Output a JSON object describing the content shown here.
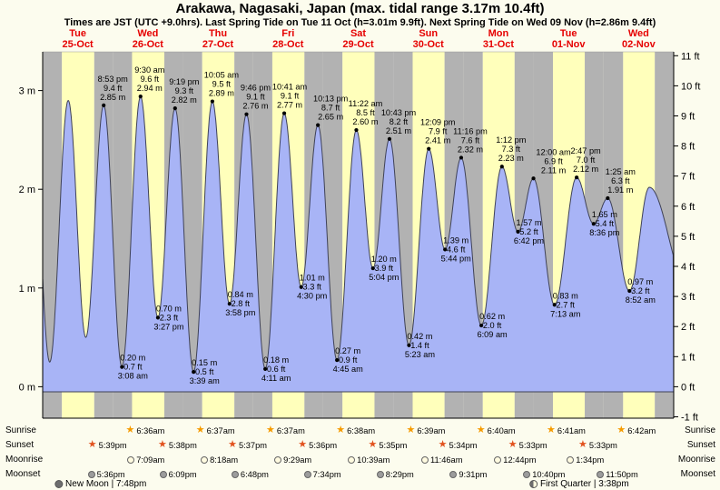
{
  "header": {
    "title": "Arakawa, Nagasaki, Japan (max. tidal range 3.17m 10.4ft)",
    "subtitle": "Times are JST (UTC +9.0hrs). Last Spring Tide on Tue 11 Oct (h=3.01m 9.9ft). Next Spring Tide on Wed 09 Nov (h=2.86m 9.4ft)"
  },
  "days": [
    {
      "weekday": "Tue",
      "date": "25-Oct"
    },
    {
      "weekday": "Wed",
      "date": "26-Oct"
    },
    {
      "weekday": "Thu",
      "date": "27-Oct"
    },
    {
      "weekday": "Fri",
      "date": "28-Oct"
    },
    {
      "weekday": "Sat",
      "date": "29-Oct"
    },
    {
      "weekday": "Sun",
      "date": "30-Oct"
    },
    {
      "weekday": "Mon",
      "date": "31-Oct"
    },
    {
      "weekday": "Tue",
      "date": "01-Nov"
    },
    {
      "weekday": "Wed",
      "date": "02-Nov"
    }
  ],
  "chart_data": {
    "type": "area",
    "title": "Arakawa, Nagasaki, Japan tide curve",
    "x_axis": {
      "days": 9,
      "start": "Tue 25-Oct",
      "end": "Wed 02-Nov"
    },
    "y_axis_left": {
      "unit": "m",
      "ticks": [
        3,
        2,
        1,
        0
      ]
    },
    "y_axis_right": {
      "unit": "ft",
      "ticks": [
        11,
        10,
        9,
        8,
        7,
        6,
        5,
        4,
        3,
        2,
        1,
        0,
        -1
      ]
    },
    "ylim_m": [
      -0.35,
      3.4
    ],
    "colors": {
      "night_band": "#b2b2b2",
      "day_band": "#ffffbb",
      "tide_fill": "#a8b4f6",
      "tide_stroke": "#3f4257",
      "header_red": "#e60000",
      "sunrise_star": "#f59b00",
      "sunset_star": "#e2521e",
      "moonrise_fill": "#fffbe0",
      "moonset_fill": "#9c9c9c"
    },
    "day_night": [
      {
        "sunrise": "6:36 am",
        "sunset": "5:39 pm"
      },
      {
        "sunrise": "6:36 am",
        "sunset": "5:38 pm"
      },
      {
        "sunrise": "6:37 am",
        "sunset": "5:37 pm"
      },
      {
        "sunrise": "6:37 am",
        "sunset": "5:36 pm"
      },
      {
        "sunrise": "6:38 am",
        "sunset": "5:35 pm"
      },
      {
        "sunrise": "6:39 am",
        "sunset": "5:34 pm"
      },
      {
        "sunrise": "6:40 am",
        "sunset": "5:33 pm"
      },
      {
        "sunrise": "6:41 am",
        "sunset": "5:33 pm"
      },
      {
        "sunrise": "6:42 am",
        "sunset": "5:32 pm"
      }
    ],
    "tide_events": [
      {
        "day": -1,
        "type": "high",
        "time": "8:15 pm",
        "height_m": 2.8,
        "labeled": false
      },
      {
        "day": 0,
        "type": "low",
        "time": "2:25 am",
        "height_m": 0.25,
        "labeled": false
      },
      {
        "day": 0,
        "type": "high",
        "time": "8:45 am",
        "height_m": 2.9,
        "labeled": false
      },
      {
        "day": 0,
        "type": "low",
        "time": "2:45 pm",
        "height_m": 0.5,
        "labeled": false
      },
      {
        "day": 0,
        "type": "high",
        "time": "8:53 pm",
        "height_m": 2.85,
        "height_ft": 9.4,
        "labeled": true
      },
      {
        "day": 1,
        "type": "low",
        "time": "3:08 am",
        "height_m": 0.2,
        "height_ft": 0.7,
        "labeled": true
      },
      {
        "day": 1,
        "type": "high",
        "time": "9:30 am",
        "height_m": 2.94,
        "height_ft": 9.6,
        "labeled": true
      },
      {
        "day": 1,
        "type": "low",
        "time": "3:27 pm",
        "height_m": 0.7,
        "height_ft": 2.3,
        "labeled": true
      },
      {
        "day": 1,
        "type": "high",
        "time": "9:19 pm",
        "height_m": 2.82,
        "height_ft": 9.3,
        "labeled": true
      },
      {
        "day": 2,
        "type": "low",
        "time": "3:39 am",
        "height_m": 0.15,
        "height_ft": 0.5,
        "labeled": true
      },
      {
        "day": 2,
        "type": "high",
        "time": "10:05 am",
        "height_m": 2.89,
        "height_ft": 9.5,
        "labeled": true
      },
      {
        "day": 2,
        "type": "low",
        "time": "3:58 pm",
        "height_m": 0.84,
        "height_ft": 2.8,
        "labeled": true
      },
      {
        "day": 2,
        "type": "high",
        "time": "9:46 pm",
        "height_m": 2.76,
        "height_ft": 9.1,
        "labeled": true
      },
      {
        "day": 3,
        "type": "low",
        "time": "4:11 am",
        "height_m": 0.18,
        "height_ft": 0.6,
        "labeled": true
      },
      {
        "day": 3,
        "type": "high",
        "time": "10:41 am",
        "height_m": 2.77,
        "height_ft": 9.1,
        "labeled": true,
        "label_dx": -4
      },
      {
        "day": 3,
        "type": "low",
        "time": "4:30 pm",
        "height_m": 1.01,
        "height_ft": 3.3,
        "labeled": true
      },
      {
        "day": 3,
        "type": "high",
        "time": "10:13 pm",
        "height_m": 2.65,
        "height_ft": 8.7,
        "labeled": true,
        "label_dx": 4
      },
      {
        "day": 4,
        "type": "low",
        "time": "4:45 am",
        "height_m": 0.27,
        "height_ft": 0.9,
        "labeled": true
      },
      {
        "day": 4,
        "type": "high",
        "time": "11:22 am",
        "height_m": 2.6,
        "height_ft": 8.5,
        "labeled": true
      },
      {
        "day": 4,
        "type": "low",
        "time": "5:04 pm",
        "height_m": 1.2,
        "height_ft": 3.9,
        "labeled": true
      },
      {
        "day": 4,
        "type": "high",
        "time": "10:43 pm",
        "height_m": 2.51,
        "height_ft": 8.2,
        "labeled": true
      },
      {
        "day": 5,
        "type": "low",
        "time": "5:23 am",
        "height_m": 0.42,
        "height_ft": 1.4,
        "labeled": true
      },
      {
        "day": 5,
        "type": "high",
        "time": "12:09 pm",
        "height_m": 2.41,
        "height_ft": 7.9,
        "labeled": true
      },
      {
        "day": 5,
        "type": "low",
        "time": "5:44 pm",
        "height_m": 1.39,
        "height_ft": 4.6,
        "labeled": true
      },
      {
        "day": 5,
        "type": "high",
        "time": "11:16 pm",
        "height_m": 2.32,
        "height_ft": 7.6,
        "labeled": true
      },
      {
        "day": 6,
        "type": "low",
        "time": "6:09 am",
        "height_m": 0.62,
        "height_ft": 2.0,
        "labeled": true
      },
      {
        "day": 6,
        "type": "high",
        "time": "1:12 pm",
        "height_m": 2.23,
        "height_ft": 7.3,
        "labeled": true
      },
      {
        "day": 6,
        "type": "low",
        "time": "6:42 pm",
        "height_m": 1.57,
        "height_ft": 5.2,
        "labeled": true
      },
      {
        "day": 7,
        "type": "high",
        "time": "12:00 am",
        "height_m": 2.11,
        "height_ft": 6.9,
        "labeled": true,
        "label_dx": 12
      },
      {
        "day": 7,
        "type": "low",
        "time": "7:13 am",
        "height_m": 0.83,
        "height_ft": 2.7,
        "labeled": true
      },
      {
        "day": 7,
        "type": "high",
        "time": "2:47 pm",
        "height_m": 2.12,
        "height_ft": 7.0,
        "labeled": true
      },
      {
        "day": 7,
        "type": "low",
        "time": "8:36 pm",
        "height_m": 1.65,
        "height_ft": 5.4,
        "labeled": true
      },
      {
        "day": 8,
        "type": "high",
        "time": "1:25 am",
        "height_m": 1.91,
        "height_ft": 6.3,
        "labeled": true,
        "label_dx": 4
      },
      {
        "day": 8,
        "type": "low",
        "time": "8:52 am",
        "height_m": 0.97,
        "height_ft": 3.2,
        "labeled": true
      },
      {
        "day": 8,
        "type": "high",
        "time": "3:40 pm",
        "height_m": 2.02,
        "labeled": false
      },
      {
        "day": 9,
        "type": "low",
        "time": "5:00 am",
        "height_m": 1.0,
        "labeled": false
      }
    ]
  },
  "astro": {
    "row_labels": [
      "Sunrise",
      "Sunset",
      "Moonrise",
      "Moonset"
    ],
    "sunrise": [
      {
        "day": 1,
        "time": "6:36am"
      },
      {
        "day": 2,
        "time": "6:37am"
      },
      {
        "day": 3,
        "time": "6:37am"
      },
      {
        "day": 4,
        "time": "6:38am"
      },
      {
        "day": 5,
        "time": "6:39am"
      },
      {
        "day": 6,
        "time": "6:40am"
      },
      {
        "day": 7,
        "time": "6:41am"
      },
      {
        "day": 8,
        "time": "6:42am"
      }
    ],
    "sunset": [
      {
        "day": 0,
        "time": "5:39pm"
      },
      {
        "day": 1,
        "time": "5:38pm"
      },
      {
        "day": 2,
        "time": "5:37pm"
      },
      {
        "day": 3,
        "time": "5:36pm"
      },
      {
        "day": 4,
        "time": "5:35pm"
      },
      {
        "day": 5,
        "time": "5:34pm"
      },
      {
        "day": 6,
        "time": "5:33pm"
      },
      {
        "day": 7,
        "time": "5:33pm"
      }
    ],
    "moonrise": [
      {
        "day": 1,
        "time": "7:09am"
      },
      {
        "day": 2,
        "time": "8:18am"
      },
      {
        "day": 3,
        "time": "9:29am"
      },
      {
        "day": 4,
        "time": "10:39am"
      },
      {
        "day": 5,
        "time": "11:46am"
      },
      {
        "day": 6,
        "time": "12:44pm"
      },
      {
        "day": 7,
        "time": "1:34pm"
      }
    ],
    "moonset": [
      {
        "day": 0,
        "time": "5:36pm"
      },
      {
        "day": 1,
        "time": "6:09pm"
      },
      {
        "day": 2,
        "time": "6:48pm"
      },
      {
        "day": 3,
        "time": "7:34pm"
      },
      {
        "day": 4,
        "time": "8:29pm"
      },
      {
        "day": 5,
        "time": "9:31pm"
      },
      {
        "day": 6,
        "time": "10:40pm"
      },
      {
        "day": 7,
        "time": "11:50pm"
      }
    ],
    "phases": [
      {
        "label": "New Moon | 7:48pm",
        "day": 0,
        "time": "7:48pm",
        "icon": "new-moon-icon",
        "fill": "#6e6e6e"
      },
      {
        "label": "First Quarter | 3:38pm",
        "day": 7,
        "time": "3:38pm",
        "icon": "first-quarter-icon",
        "fill": "linear-gradient(90deg,#6e6e6e 50%,#fffbe0 50%)"
      }
    ]
  }
}
